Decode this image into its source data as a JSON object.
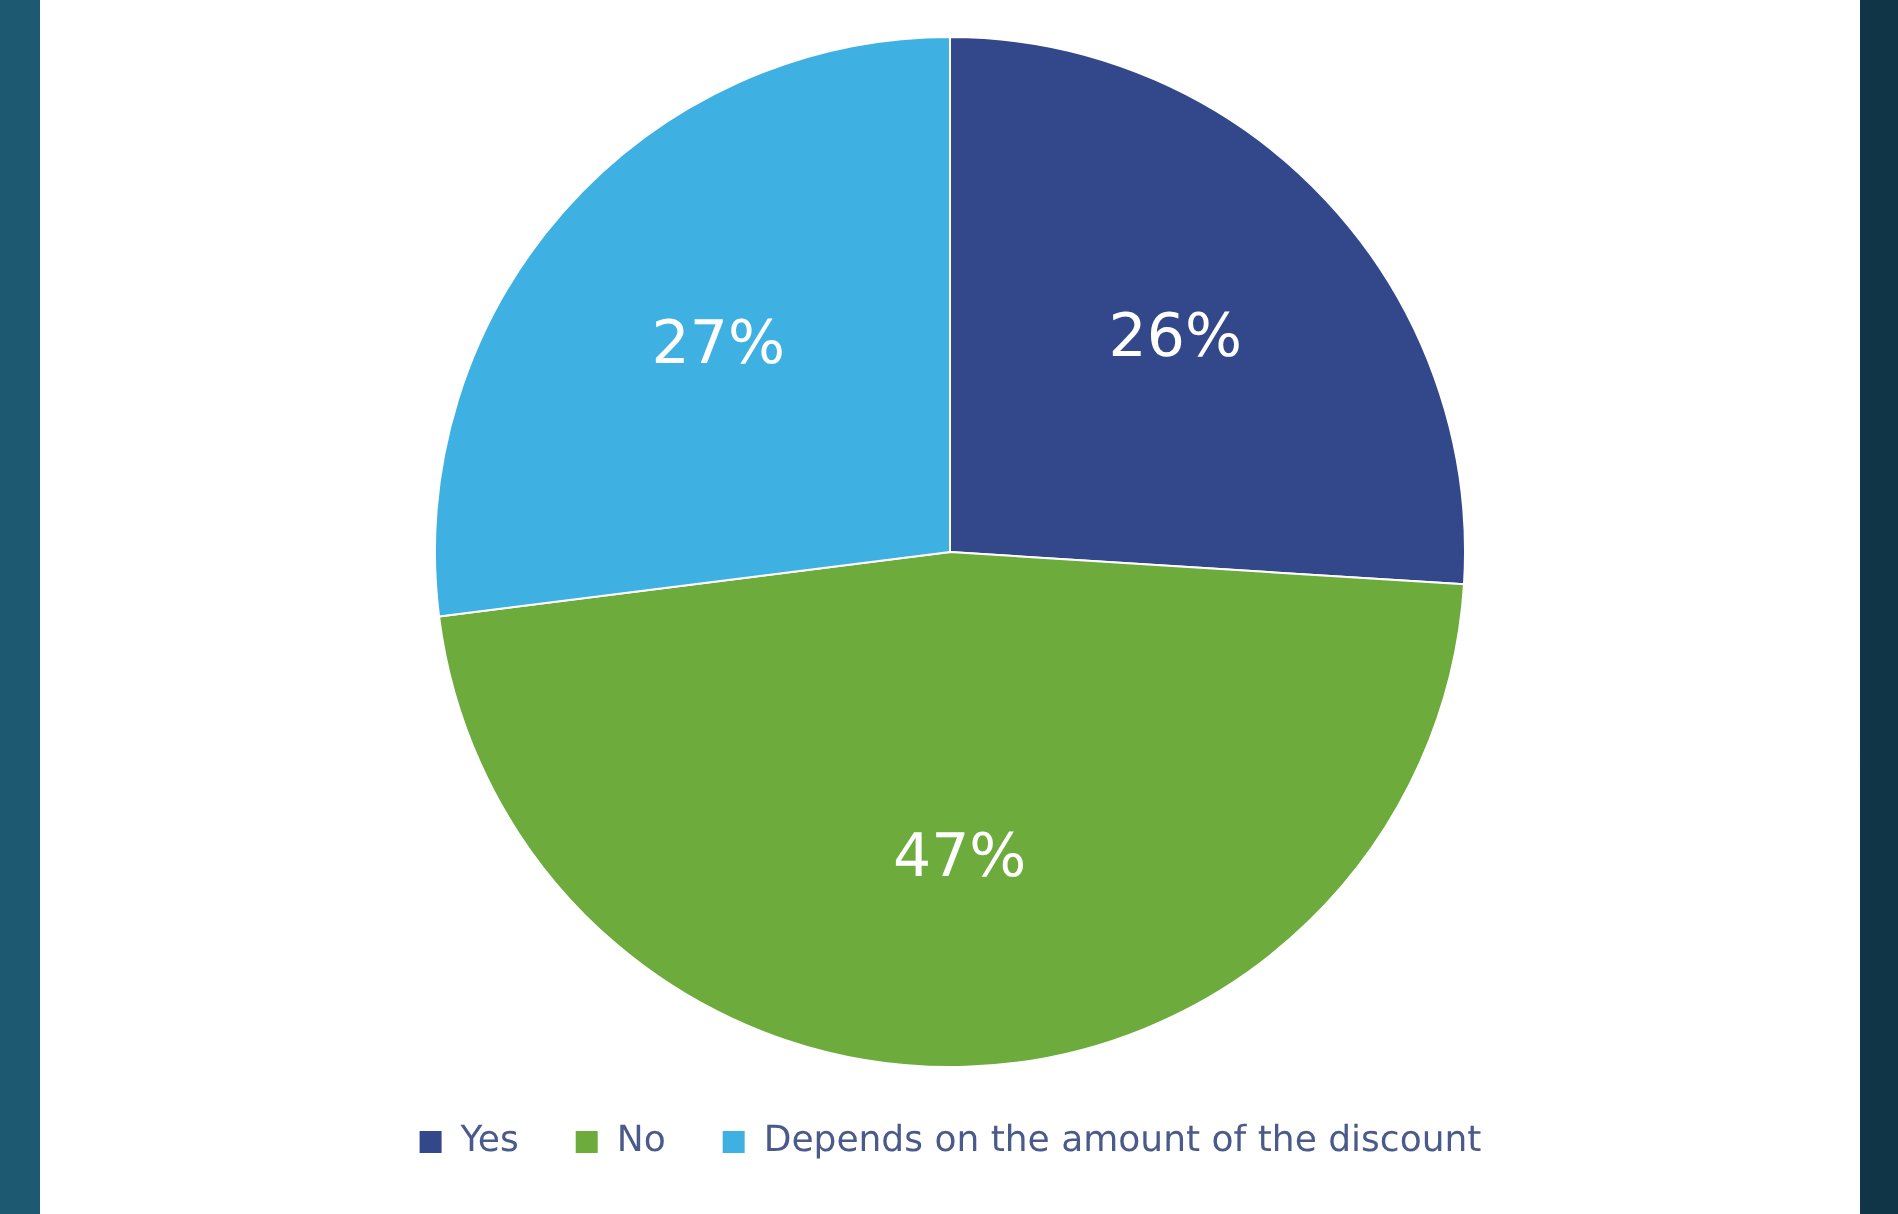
{
  "chart_data": {
    "type": "pie",
    "categories": [
      "Yes",
      "No",
      "Depends on the amount of the discount"
    ],
    "values": [
      26,
      47,
      27
    ],
    "value_labels": [
      "26%",
      "47%",
      "27%"
    ],
    "colors": [
      "#33488a",
      "#6cab3c",
      "#3fb0e2"
    ],
    "legend": "bottom"
  }
}
